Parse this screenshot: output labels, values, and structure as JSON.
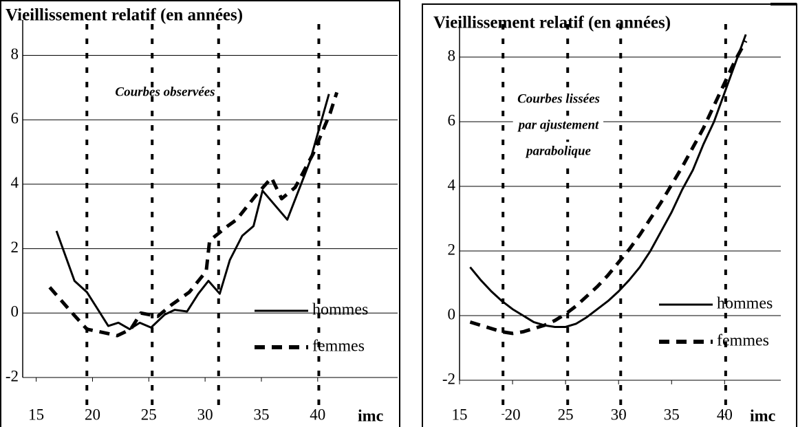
{
  "chart_data": [
    {
      "type": "line",
      "title": "Vieillissement relatif (en années)",
      "x_label": "imc",
      "annotation": [
        "Courbes observées"
      ],
      "xlim": [
        13.8,
        47.1
      ],
      "ylim": [
        -2,
        9.1
      ],
      "xticks": [
        15,
        20,
        25,
        30,
        35,
        40
      ],
      "yticks": [
        -2,
        0,
        2,
        4,
        6,
        8
      ],
      "reference_lines": [
        19.5,
        25.3,
        31.2,
        40.1
      ],
      "grid": true,
      "series": [
        {
          "name": "hommes",
          "color": "#000000",
          "style": "solid",
          "x": [
            16.8,
            18.4,
            19.5,
            20.5,
            21.4,
            22.3,
            23.3,
            24.2,
            25.2,
            26.4,
            27.3,
            28.4,
            29.4,
            30.3,
            31.3,
            32.2,
            33.3,
            34.3,
            35.1,
            37.3,
            39.3,
            41.0
          ],
          "values": [
            2.55,
            1.0,
            0.65,
            0.1,
            -0.4,
            -0.3,
            -0.5,
            -0.3,
            -0.45,
            -0.05,
            0.1,
            0.05,
            0.6,
            1.0,
            0.6,
            1.65,
            2.4,
            2.7,
            3.8,
            2.9,
            4.7,
            6.8
          ]
        },
        {
          "name": "femmes",
          "color": "#000000",
          "style": "dashed",
          "x": [
            16.2,
            18.2,
            19.5,
            20.9,
            22.2,
            23.4,
            24.3,
            25.8,
            27.0,
            28.6,
            30.1,
            30.4,
            32.0,
            32.8,
            34.5,
            35.9,
            36.8,
            38.0,
            39.6,
            41.1,
            41.7
          ],
          "values": [
            0.8,
            0.0,
            -0.5,
            -0.6,
            -0.7,
            -0.5,
            0.0,
            -0.1,
            0.25,
            0.65,
            1.3,
            2.25,
            2.7,
            2.9,
            3.65,
            4.2,
            3.55,
            3.9,
            4.95,
            6.2,
            6.85
          ]
        }
      ]
    },
    {
      "type": "line",
      "title": "Vieillissement relatif (en années)",
      "x_label": "imc",
      "annotation": [
        "Courbes lissées",
        "par ajustement",
        "parabolique"
      ],
      "xlim": [
        15,
        45.3
      ],
      "ylim": [
        -2,
        9.15
      ],
      "xticks": [
        15,
        20,
        25,
        30,
        35,
        40
      ],
      "yticks": [
        -2,
        0,
        2,
        4,
        6,
        8
      ],
      "reference_lines": [
        19.1,
        25.2,
        30.2,
        40.1
      ],
      "grid": true,
      "series": [
        {
          "name": "hommes",
          "color": "#000000",
          "style": "solid",
          "x": [
            16,
            17,
            18,
            19,
            20,
            21,
            22,
            23,
            24,
            25,
            26,
            27,
            28,
            29,
            30,
            31,
            32,
            33,
            34,
            35,
            36,
            37,
            38,
            39,
            40,
            41,
            42
          ],
          "values": [
            1.5,
            1.1,
            0.75,
            0.45,
            0.2,
            0.0,
            -0.2,
            -0.3,
            -0.35,
            -0.35,
            -0.25,
            -0.05,
            0.2,
            0.45,
            0.75,
            1.1,
            1.5,
            2.0,
            2.6,
            3.2,
            3.9,
            4.5,
            5.3,
            6.0,
            6.9,
            7.8,
            8.7
          ]
        },
        {
          "name": "femmes",
          "color": "#000000",
          "style": "dashed",
          "x": [
            16,
            17,
            18,
            19,
            20,
            21,
            22,
            23,
            24,
            25,
            26,
            27,
            28,
            29,
            30,
            31,
            32,
            33,
            34,
            35,
            36,
            37,
            38,
            39,
            40,
            41,
            42
          ],
          "values": [
            -0.2,
            -0.3,
            -0.4,
            -0.5,
            -0.55,
            -0.5,
            -0.4,
            -0.3,
            -0.15,
            0.05,
            0.3,
            0.6,
            0.9,
            1.25,
            1.65,
            2.05,
            2.5,
            3.0,
            3.5,
            4.05,
            4.6,
            5.2,
            5.8,
            6.5,
            7.2,
            7.9,
            8.5
          ]
        }
      ]
    }
  ]
}
